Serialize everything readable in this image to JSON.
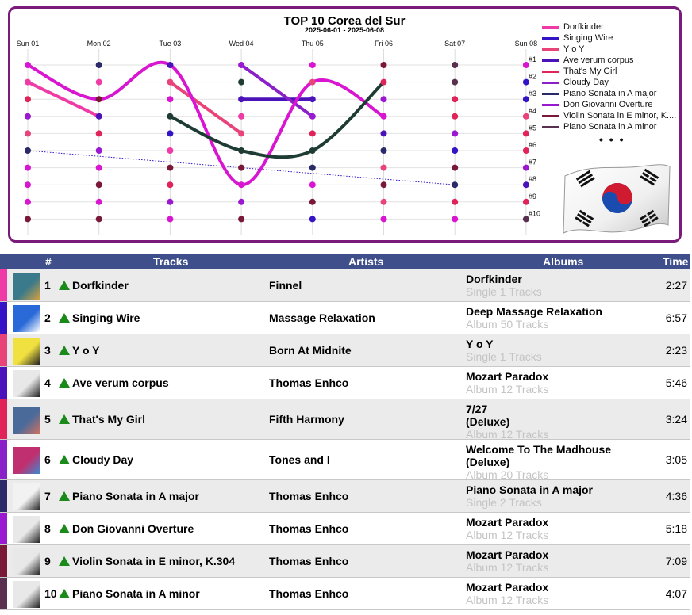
{
  "chart_data": {
    "type": "line",
    "title": "TOP 10 Corea del Sur",
    "subtitle": "2025-06-01 - 2025-06-08",
    "x": [
      "Sun 01",
      "Mon 02",
      "Tue 03",
      "Wed 04",
      "Thu 05",
      "Fri 06",
      "Sat 07",
      "Sun 08"
    ],
    "rank_labels": [
      "#1",
      "#2",
      "#3",
      "#4",
      "#5",
      "#6",
      "#7",
      "#8",
      "#9",
      "#10"
    ],
    "ylim": [
      1,
      10
    ],
    "y_inverted": true,
    "legend_position": "right",
    "legend_more": "• • •",
    "series": [
      {
        "name": "Dorfkinder",
        "color": "#ee3ba6",
        "values": [
          2,
          4,
          null,
          null,
          null,
          null,
          null,
          null
        ]
      },
      {
        "name": "Singing Wire",
        "color": "#3414c4",
        "values": [
          6,
          null,
          null,
          null,
          null,
          null,
          8,
          null
        ]
      },
      {
        "name": "Y o Y",
        "color": "#e8447a",
        "values": [
          null,
          null,
          2,
          5,
          null,
          null,
          null,
          null
        ]
      },
      {
        "name": "Ave verum corpus",
        "color": "#4a12b8",
        "values": [
          null,
          null,
          null,
          3,
          3,
          null,
          null,
          null
        ]
      },
      {
        "name": "That's My Girl",
        "color": "#e0245a",
        "values": [
          null,
          null,
          null,
          null,
          null,
          null,
          null,
          null
        ]
      },
      {
        "name": "Cloudy Day",
        "color": "#8a20c8",
        "values": [
          null,
          null,
          null,
          1,
          4,
          null,
          null,
          null
        ]
      },
      {
        "name": "Piano Sonata in A major",
        "color": "#2a2a6a",
        "values": [
          null,
          null,
          null,
          null,
          null,
          null,
          null,
          null
        ]
      },
      {
        "name": "Don Giovanni Overture",
        "color": "#9a18d0",
        "values": [
          null,
          null,
          null,
          null,
          null,
          null,
          null,
          null
        ]
      },
      {
        "name": "Violin Sonata in E minor, K....",
        "color": "#7a1838",
        "values": [
          null,
          null,
          null,
          null,
          null,
          null,
          null,
          null
        ]
      },
      {
        "name": "Piano Sonata in A minor",
        "color": "#5a3050",
        "values": [
          null,
          null,
          null,
          null,
          null,
          null,
          null,
          null
        ]
      },
      {
        "name": "",
        "color": "#d815d0",
        "values": [
          1,
          3,
          1,
          8,
          2,
          4,
          null,
          null
        ]
      },
      {
        "name": "",
        "color": "#1e3c34",
        "values": [
          null,
          null,
          4,
          6,
          6,
          2,
          null,
          null
        ]
      }
    ],
    "faint_series": [
      {
        "color": "#ee3ba6",
        "values": [
          null,
          2,
          null,
          4,
          null,
          null,
          null,
          null
        ]
      }
    ],
    "dot_colors": [
      [
        "#d815d0",
        "#2a2a6a",
        "#4a12b8",
        "#9a18d0",
        "#d815d0",
        "#7a1838",
        "#5a3050",
        "#d815d0"
      ],
      [
        "#ee3ba6",
        "#ee3ba6",
        "#e8447a",
        "#1e3c34",
        "#e8447a",
        "#e0245a",
        "#5a3050",
        "#3414c4"
      ],
      [
        "#e0245a",
        "#7a1838",
        "#d815d0",
        "#4a12b8",
        "#4a12b8",
        "#9a18d0",
        "#e0245a",
        "#3414c4"
      ],
      [
        "#9a18d0",
        "#4a12b8",
        "#1e3c34",
        "#ee3ba6",
        "#9a18d0",
        "#d815d0",
        "#e0245a",
        "#e8447a"
      ],
      [
        "#e8447a",
        "#e0245a",
        "#3414c4",
        "#e8447a",
        "#e0245a",
        "#4a12b8",
        "#9a18d0",
        "#e0245a"
      ],
      [
        "#2a2a6a",
        "#9a18d0",
        "#ee3ba6",
        "#1e3c34",
        "#1e3c34",
        "#2a2a6a",
        "#3414c4",
        "#e0245a"
      ],
      [
        "#d815d0",
        "#d815d0",
        "#7a1838",
        "#7a1838",
        "#2a2a6a",
        "#e8447a",
        "#7a1838",
        "#9a18d0"
      ],
      [
        "#d815d0",
        "#7a1838",
        "#e0245a",
        "#d815d0",
        "#d815d0",
        "#7a1838",
        "#2a2a6a",
        "#4a12b8"
      ],
      [
        "#d815d0",
        "#d815d0",
        "#9a18d0",
        "#9a18d0",
        "#7a1838",
        "#e8447a",
        "#e0245a",
        "#e0245a"
      ],
      [
        "#7a1838",
        "#7a1838",
        "#d815d0",
        "#7a1838",
        "#3414c4",
        "#d815d0",
        "#d815d0",
        "#5a3050"
      ]
    ]
  },
  "table": {
    "headers": {
      "rank": "#",
      "tracks": "Tracks",
      "artists": "Artists",
      "albums": "Albums",
      "time": "Time"
    },
    "rows": [
      {
        "rank": "1",
        "track": "Dorfkinder",
        "artist": "Finnel",
        "album_lines": [
          "Dorfkinder"
        ],
        "album_sub": "Single 1 Tracks",
        "time": "2:27",
        "color": "#ee3ba6",
        "thumb": [
          "#3a7a8a",
          "#d4a040"
        ]
      },
      {
        "rank": "2",
        "track": "Singing Wire",
        "artist": "Massage Relaxation",
        "album_lines": [
          "Deep Massage Relaxation"
        ],
        "album_sub": "Album 50 Tracks",
        "time": "6:57",
        "color": "#3414c4",
        "thumb": [
          "#2a6ad8",
          "#ffffff"
        ]
      },
      {
        "rank": "3",
        "track": "Y o Y",
        "artist": "Born At Midnite",
        "album_lines": [
          "Y o Y"
        ],
        "album_sub": "Single 1 Tracks",
        "time": "2:23",
        "color": "#e8447a",
        "thumb": [
          "#f0e040",
          "#222222"
        ]
      },
      {
        "rank": "4",
        "track": "Ave verum corpus",
        "artist": "Thomas Enhco",
        "album_lines": [
          "Mozart Paradox"
        ],
        "album_sub": "Album 12 Tracks",
        "time": "5:46",
        "color": "#4a12b8",
        "thumb": [
          "#e8e8e8",
          "#222222"
        ]
      },
      {
        "rank": "5",
        "track": "That's My Girl",
        "artist": "Fifth Harmony",
        "album_lines": [
          "7/27",
          "(Deluxe)"
        ],
        "album_sub": "Album 12 Tracks",
        "time": "3:24",
        "color": "#e0245a",
        "thumb": [
          "#4a6a9a",
          "#d07060"
        ]
      },
      {
        "rank": "6",
        "track": "Cloudy Day",
        "artist": "Tones and I",
        "album_lines": [
          "Welcome To The Madhouse",
          "(Deluxe)"
        ],
        "album_sub": "Album 20 Tracks",
        "time": "3:05",
        "color": "#8a20c8",
        "thumb": [
          "#c03070",
          "#3a8ad0"
        ]
      },
      {
        "rank": "7",
        "track": "Piano Sonata in A major",
        "artist": "Thomas Enhco",
        "album_lines": [
          "Piano Sonata in A major"
        ],
        "album_sub": "Single 2 Tracks",
        "time": "4:36",
        "color": "#2a2a6a",
        "thumb": [
          "#f2f2f2",
          "#222222"
        ]
      },
      {
        "rank": "8",
        "track": "Don Giovanni Overture",
        "artist": "Thomas Enhco",
        "album_lines": [
          "Mozart Paradox"
        ],
        "album_sub": "Album 12 Tracks",
        "time": "5:18",
        "color": "#9a18d0",
        "thumb": [
          "#e8e8e8",
          "#222222"
        ]
      },
      {
        "rank": "9",
        "track": "Violin Sonata in E minor, K.304",
        "artist": "Thomas Enhco",
        "album_lines": [
          "Mozart Paradox"
        ],
        "album_sub": "Album 12 Tracks",
        "time": "7:09",
        "color": "#7a1838",
        "thumb": [
          "#e8e8e8",
          "#222222"
        ]
      },
      {
        "rank": "10",
        "track": "Piano Sonata in A minor",
        "artist": "Thomas Enhco",
        "album_lines": [
          "Mozart Paradox"
        ],
        "album_sub": "Album 12 Tracks",
        "time": "4:07",
        "color": "#5a3050",
        "thumb": [
          "#e8e8e8",
          "#222222"
        ]
      }
    ]
  },
  "colors": {
    "frame": "#7a1a7a",
    "header_bg": "#3e4f8c",
    "up_arrow": "#1a8a1a"
  },
  "icons": {
    "flag": "south-korea-flag",
    "trend": "up-arrow-icon"
  }
}
